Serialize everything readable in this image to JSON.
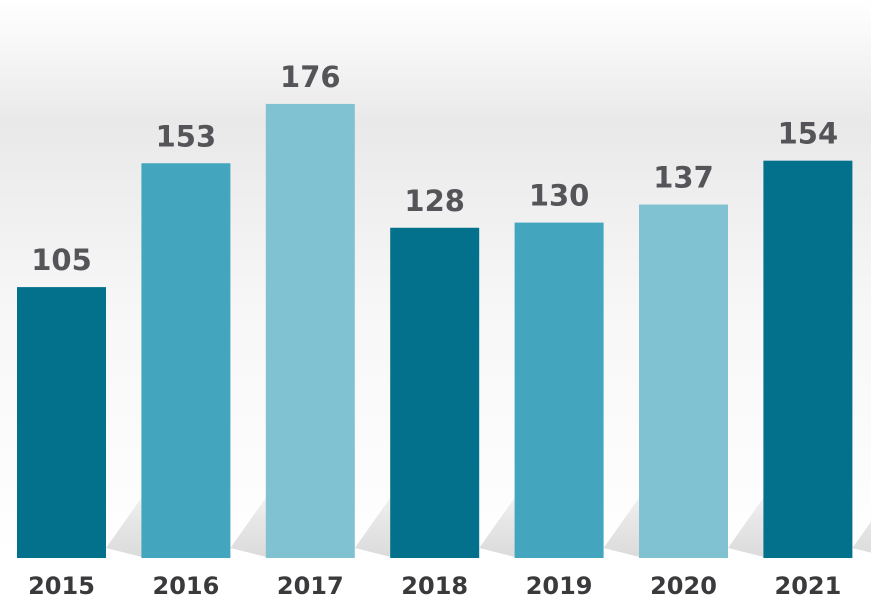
{
  "chart_data": {
    "type": "bar",
    "title": "",
    "xlabel": "",
    "ylabel": "",
    "categories": [
      "2015",
      "2016",
      "2017",
      "2018",
      "2019",
      "2020",
      "2021"
    ],
    "values": [
      105,
      153,
      176,
      128,
      130,
      137,
      154
    ],
    "ylim": [
      0,
      180
    ],
    "grid": false,
    "legend": "none",
    "bar_colors": [
      "#03718c",
      "#43a6be",
      "#80c1d2",
      "#03718c",
      "#43a6be",
      "#80c1d2",
      "#03718c"
    ]
  }
}
